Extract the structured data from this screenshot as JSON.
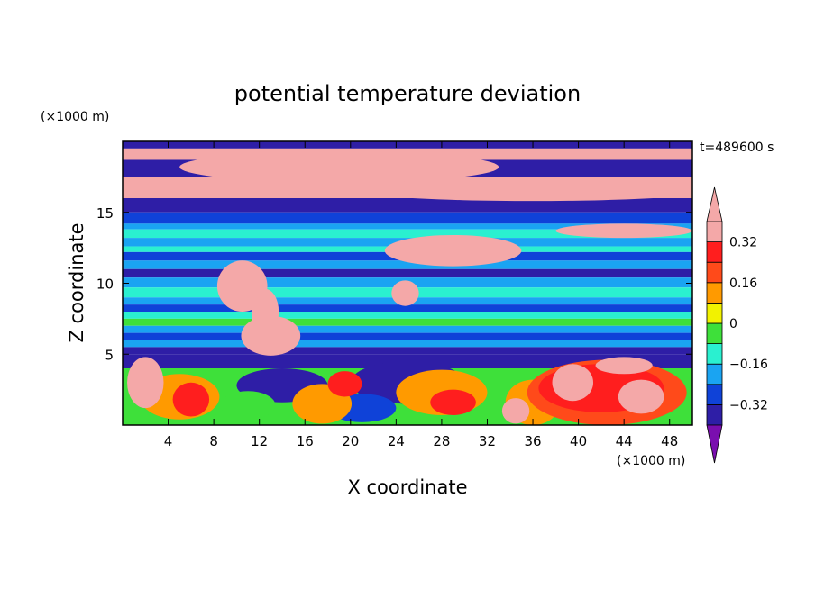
{
  "chart_data": {
    "type": "heatmap",
    "title": "potential temperature deviation",
    "xlabel": "X coordinate",
    "ylabel": "Z coordinate",
    "x_unit": "(×1000 m)",
    "y_unit": "(×1000 m)",
    "time_label": "t=489600 s",
    "xlim": [
      0,
      50
    ],
    "ylim": [
      0,
      20
    ],
    "x_ticks": [
      4,
      8,
      12,
      16,
      20,
      24,
      28,
      32,
      36,
      40,
      44,
      48
    ],
    "y_ticks": [
      5,
      10,
      15
    ],
    "colorbar": {
      "levels": [
        -0.4,
        -0.32,
        -0.24,
        -0.16,
        -0.08,
        0,
        0.08,
        0.16,
        0.24,
        0.32,
        0.4
      ],
      "tick_labels": [
        "0.32",
        "0.16",
        "0",
        "−0.16",
        "−0.32"
      ],
      "tick_values": [
        0.32,
        0.16,
        0,
        -0.16,
        -0.32
      ],
      "colors": [
        "#7a0eaf",
        "#2e1ea6",
        "#0f42d8",
        "#1aa4f2",
        "#2af0d0",
        "#3ee03a",
        "#f2f200",
        "#ff9a00",
        "#ff4a1a",
        "#ff1e1e",
        "#f4a8a8"
      ],
      "extend": "both"
    },
    "bands_z": [
      {
        "z": [
          19.5,
          20
        ],
        "v": -0.4
      },
      {
        "z": [
          18.7,
          19.5
        ],
        "v": 0.42
      },
      {
        "z": [
          17.5,
          18.7
        ],
        "v": -0.4
      },
      {
        "z": [
          16.0,
          17.5
        ],
        "v": 0.42
      },
      {
        "z": [
          15.0,
          16.0
        ],
        "v": -0.4
      },
      {
        "z": [
          14.2,
          15.0
        ],
        "v": -0.3
      },
      {
        "z": [
          13.8,
          14.2
        ],
        "v": -0.2
      },
      {
        "z": [
          13.2,
          13.8
        ],
        "v": -0.12
      },
      {
        "z": [
          12.6,
          13.2
        ],
        "v": -0.22
      },
      {
        "z": [
          12.2,
          12.6
        ],
        "v": -0.14
      },
      {
        "z": [
          11.6,
          12.2
        ],
        "v": -0.28
      },
      {
        "z": [
          11.0,
          11.6
        ],
        "v": -0.2
      },
      {
        "z": [
          10.4,
          11.0
        ],
        "v": -0.34
      },
      {
        "z": [
          9.7,
          10.4
        ],
        "v": -0.18
      },
      {
        "z": [
          9.0,
          9.7
        ],
        "v": -0.1
      },
      {
        "z": [
          8.5,
          9.0
        ],
        "v": -0.2
      },
      {
        "z": [
          8.0,
          8.5
        ],
        "v": -0.28
      },
      {
        "z": [
          7.5,
          8.0
        ],
        "v": -0.16
      },
      {
        "z": [
          7.0,
          7.5
        ],
        "v": -0.06
      },
      {
        "z": [
          6.5,
          7.0
        ],
        "v": -0.18
      },
      {
        "z": [
          6.0,
          6.5
        ],
        "v": -0.3
      },
      {
        "z": [
          5.5,
          6.0
        ],
        "v": -0.22
      },
      {
        "z": [
          5.0,
          5.5
        ],
        "v": -0.36
      },
      {
        "z": [
          4.0,
          5.0
        ],
        "v": -0.4
      },
      {
        "z": [
          0.0,
          4.0
        ],
        "v": -0.08
      }
    ],
    "features": [
      {
        "shape": "ellipse",
        "cx": 19,
        "cz": 18.2,
        "rx": 14,
        "rz": 1.1,
        "v": 0.42
      },
      {
        "shape": "ellipse",
        "cx": 36,
        "cz": 16.6,
        "rx": 16,
        "rz": 0.8,
        "v": 0.42
      },
      {
        "shape": "ellipse",
        "cx": 29,
        "cz": 12.3,
        "rx": 6,
        "rz": 1.1,
        "v": 0.42
      },
      {
        "shape": "ellipse",
        "cx": 10.5,
        "cz": 9.8,
        "rx": 2.2,
        "rz": 1.8,
        "v": 0.42
      },
      {
        "shape": "ellipse",
        "cx": 13,
        "cz": 6.3,
        "rx": 2.6,
        "rz": 1.4,
        "v": 0.42
      },
      {
        "shape": "ellipse",
        "cx": 12.5,
        "cz": 8.0,
        "rx": 1.2,
        "rz": 1.6,
        "v": 0.42
      },
      {
        "shape": "ellipse",
        "cx": 24.8,
        "cz": 9.3,
        "rx": 1.2,
        "rz": 0.9,
        "v": 0.42
      },
      {
        "shape": "ellipse",
        "cx": 44,
        "cz": 13.7,
        "rx": 6,
        "rz": 0.5,
        "v": 0.42
      },
      {
        "shape": "ellipse",
        "cx": 14,
        "cz": 2.8,
        "rx": 4,
        "rz": 1.2,
        "v": -0.4
      },
      {
        "shape": "ellipse",
        "cx": 25,
        "cz": 3.0,
        "rx": 5,
        "rz": 1.5,
        "v": -0.4
      },
      {
        "shape": "ellipse",
        "cx": 21,
        "cz": 1.2,
        "rx": 3,
        "rz": 1.0,
        "v": -0.32
      },
      {
        "shape": "ellipse",
        "cx": 5,
        "cz": 2.0,
        "rx": 3.5,
        "rz": 1.6,
        "v": 0.1
      },
      {
        "shape": "ellipse",
        "cx": 2,
        "cz": 3.0,
        "rx": 1.6,
        "rz": 1.8,
        "v": 0.42
      },
      {
        "shape": "ellipse",
        "cx": 6,
        "cz": 1.8,
        "rx": 1.6,
        "rz": 1.2,
        "v": 0.24
      },
      {
        "shape": "ellipse",
        "cx": 11,
        "cz": 1.4,
        "rx": 2.4,
        "rz": 1.0,
        "v": -0.08
      },
      {
        "shape": "ellipse",
        "cx": 17.5,
        "cz": 1.5,
        "rx": 2.6,
        "rz": 1.4,
        "v": 0.08
      },
      {
        "shape": "ellipse",
        "cx": 19.5,
        "cz": 2.9,
        "rx": 1.5,
        "rz": 0.9,
        "v": 0.24
      },
      {
        "shape": "ellipse",
        "cx": 28,
        "cz": 2.3,
        "rx": 4,
        "rz": 1.6,
        "v": 0.12
      },
      {
        "shape": "ellipse",
        "cx": 29,
        "cz": 1.6,
        "rx": 2,
        "rz": 0.9,
        "v": 0.24
      },
      {
        "shape": "ellipse",
        "cx": 36,
        "cz": 1.6,
        "rx": 2.4,
        "rz": 1.6,
        "v": 0.1
      },
      {
        "shape": "ellipse",
        "cx": 34.5,
        "cz": 1.0,
        "rx": 1.2,
        "rz": 0.9,
        "v": 0.32
      },
      {
        "shape": "ellipse",
        "cx": 42.5,
        "cz": 2.3,
        "rx": 7,
        "rz": 2.3,
        "v": 0.16
      },
      {
        "shape": "ellipse",
        "cx": 42,
        "cz": 2.6,
        "rx": 5.5,
        "rz": 1.7,
        "v": 0.26
      },
      {
        "shape": "ellipse",
        "cx": 39.5,
        "cz": 3.0,
        "rx": 1.8,
        "rz": 1.3,
        "v": 0.42
      },
      {
        "shape": "ellipse",
        "cx": 45.5,
        "cz": 2.0,
        "rx": 2,
        "rz": 1.2,
        "v": 0.32
      },
      {
        "shape": "ellipse",
        "cx": 44,
        "cz": 4.2,
        "rx": 2.5,
        "rz": 0.6,
        "v": 0.42
      }
    ]
  }
}
